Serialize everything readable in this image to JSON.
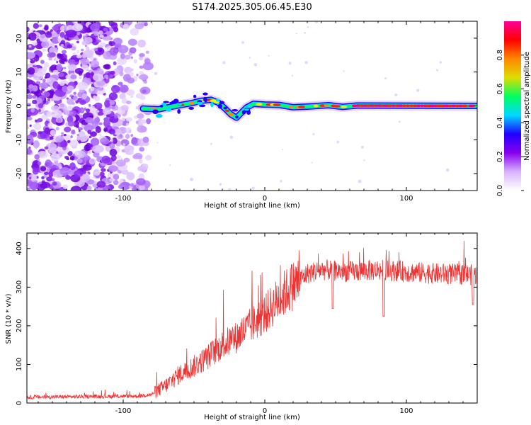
{
  "title": "S174.2025.305.06.45.E30",
  "chart_data": [
    {
      "type": "heatmap",
      "name": "spectrogram",
      "xlabel": "Height of straight line (km)",
      "ylabel": "Frequency (Hz)",
      "xlim": [
        -168,
        150
      ],
      "ylim": [
        -25,
        25
      ],
      "xticks": [
        -100,
        0,
        100
      ],
      "yticks": [
        -20,
        -10,
        0,
        10,
        20
      ],
      "noise_region_x": [
        -168,
        -82
      ],
      "ridge": [
        {
          "x": -86,
          "y": -0.8
        },
        {
          "x": -75,
          "y": -1.0
        },
        {
          "x": -68,
          "y": -0.4
        },
        {
          "x": -60,
          "y": 0.2
        },
        {
          "x": -52,
          "y": 0.8
        },
        {
          "x": -45,
          "y": 1.5
        },
        {
          "x": -38,
          "y": 1.8
        },
        {
          "x": -33,
          "y": 1.0
        },
        {
          "x": -28,
          "y": -0.8
        },
        {
          "x": -24,
          "y": -2.5
        },
        {
          "x": -20,
          "y": -3.5
        },
        {
          "x": -17,
          "y": -2.2
        },
        {
          "x": -13,
          "y": -0.5
        },
        {
          "x": -8,
          "y": 0.6
        },
        {
          "x": 0,
          "y": 0.4
        },
        {
          "x": 10,
          "y": 0.3
        },
        {
          "x": 20,
          "y": -0.4
        },
        {
          "x": 30,
          "y": -0.2
        },
        {
          "x": 45,
          "y": 0.2
        },
        {
          "x": 55,
          "y": -0.3
        },
        {
          "x": 65,
          "y": 0.1
        },
        {
          "x": 150,
          "y": 0.0
        }
      ],
      "colorbar": {
        "label": "Normalized spectral amplitude",
        "range": [
          0,
          1
        ],
        "ticks": [
          0.0,
          0.2,
          0.4,
          0.6,
          0.8
        ],
        "tick_labels": [
          "0.0",
          "0.2",
          "0.4",
          "0.6",
          "0.8"
        ],
        "colormap": [
          "#ffffff",
          "#d9b3ff",
          "#8800ee",
          "#2200ff",
          "#00d8ff",
          "#00ff60",
          "#dddd00",
          "#ff8800",
          "#ff0000",
          "#ff0099"
        ]
      }
    },
    {
      "type": "line",
      "name": "snr",
      "xlabel": "Height of straight line (km)",
      "ylabel": "SNR (10 * v/v)",
      "xlim": [
        -168,
        150
      ],
      "ylim": [
        0,
        440
      ],
      "xticks": [
        -100,
        0,
        100
      ],
      "yticks": [
        0,
        100,
        200,
        300,
        400
      ],
      "color": "#ee3333",
      "trend": [
        {
          "x": -168,
          "y": 15
        },
        {
          "x": -90,
          "y": 18
        },
        {
          "x": -80,
          "y": 22
        },
        {
          "x": -70,
          "y": 45
        },
        {
          "x": -60,
          "y": 75
        },
        {
          "x": -50,
          "y": 95
        },
        {
          "x": -40,
          "y": 120
        },
        {
          "x": -30,
          "y": 150
        },
        {
          "x": -20,
          "y": 170
        },
        {
          "x": -10,
          "y": 200
        },
        {
          "x": 0,
          "y": 230
        },
        {
          "x": 10,
          "y": 270
        },
        {
          "x": 20,
          "y": 305
        },
        {
          "x": 30,
          "y": 335
        },
        {
          "x": 40,
          "y": 345
        },
        {
          "x": 60,
          "y": 340
        },
        {
          "x": 80,
          "y": 345
        },
        {
          "x": 100,
          "y": 340
        },
        {
          "x": 120,
          "y": 335
        },
        {
          "x": 150,
          "y": 332
        }
      ],
      "dips": [
        {
          "x": 48,
          "y": 245
        },
        {
          "x": 84,
          "y": 225
        },
        {
          "x": 147,
          "y": 255
        }
      ]
    }
  ]
}
